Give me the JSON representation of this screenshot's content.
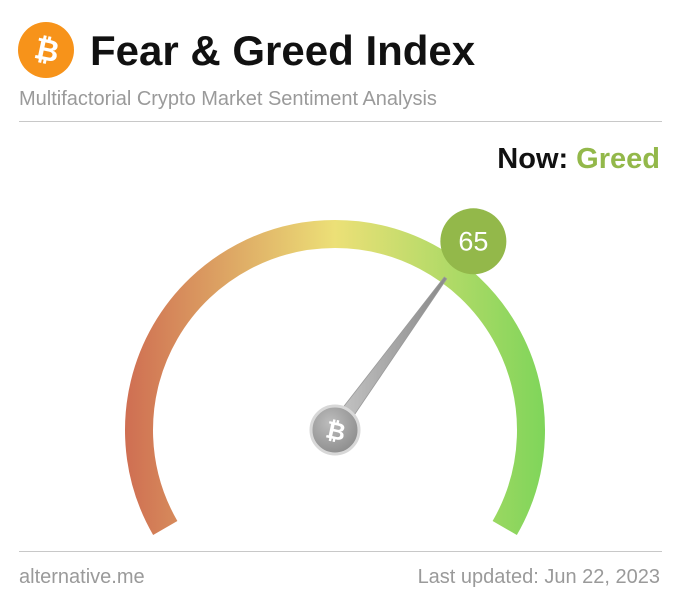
{
  "header": {
    "title": "Fear & Greed Index",
    "subtitle": "Multifactorial Crypto Market Sentiment Analysis",
    "logo_glyph": "₿",
    "logo_color": "#f7931a"
  },
  "status": {
    "now_label": "Now:",
    "classification": "Greed",
    "value": "65",
    "value_numeric": 65,
    "scale_min": 0,
    "scale_max": 100,
    "accent_color": "#93b84a"
  },
  "gauge": {
    "center_glyph": "₿",
    "colors": {
      "fear": "#cf6e52",
      "neutral": "#ece077",
      "greed": "#7fd55a"
    }
  },
  "footer": {
    "source": "alternative.me",
    "updated_label": "Last updated:",
    "updated_date": "Jun 22, 2023"
  }
}
